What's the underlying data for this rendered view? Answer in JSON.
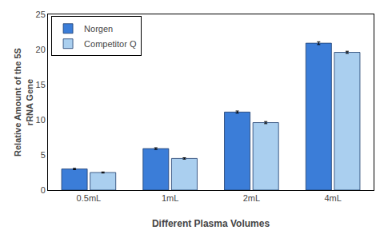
{
  "chart_data": {
    "type": "bar",
    "categories": [
      "0.5mL",
      "1mL",
      "2mL",
      "4mL"
    ],
    "series": [
      {
        "name": "Norgen",
        "color": "#3B7DD8",
        "values": [
          3.0,
          5.9,
          11.1,
          20.9
        ],
        "errors": [
          0.1,
          0.12,
          0.15,
          0.2
        ]
      },
      {
        "name": "Competitor Q",
        "color": "#AACFEF",
        "values": [
          2.5,
          4.5,
          9.6,
          19.6
        ],
        "errors": [
          0.08,
          0.1,
          0.15,
          0.15
        ]
      }
    ],
    "xlabel": "Different Plasma Volumes",
    "ylabel": "Relative Amount of the 5S\nrRNA Gene",
    "ylim": [
      0,
      25
    ],
    "yticks": [
      0,
      5,
      10,
      15,
      20,
      25
    ],
    "grid": false,
    "legend": "upper left"
  }
}
